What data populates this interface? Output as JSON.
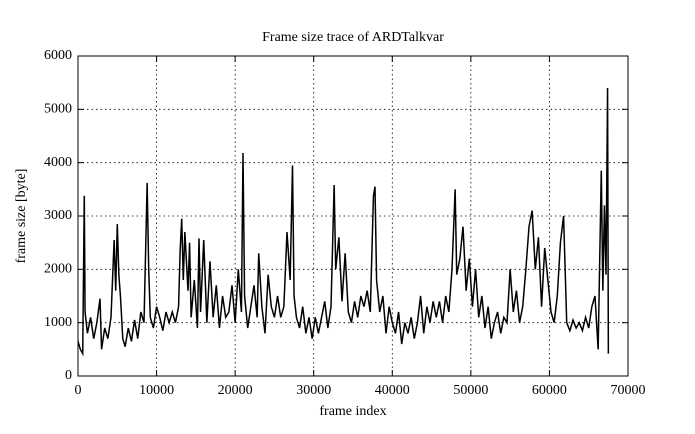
{
  "chart_data": {
    "type": "line",
    "title": "Frame size trace of ARDTalkvar",
    "x_label": "frame index",
    "y_label": "frame size [byte]",
    "x": [
      0,
      300,
      600,
      800,
      900,
      1200,
      1600,
      2000,
      2400,
      2800,
      3000,
      3400,
      3800,
      4200,
      4600,
      4800,
      5000,
      5200,
      5400,
      5700,
      6000,
      6400,
      6800,
      7200,
      7600,
      8000,
      8400,
      8800,
      9000,
      9200,
      9600,
      10000,
      10400,
      10800,
      11200,
      11600,
      12000,
      12400,
      12800,
      13000,
      13200,
      13400,
      13600,
      14000,
      14200,
      14400,
      14800,
      15200,
      15400,
      15600,
      16000,
      16400,
      16800,
      17200,
      17600,
      18000,
      18400,
      18800,
      19200,
      19600,
      20000,
      20400,
      20800,
      21000,
      21200,
      21600,
      22000,
      22400,
      22800,
      23000,
      23400,
      23800,
      24200,
      24600,
      25000,
      25400,
      25800,
      26200,
      26600,
      27000,
      27300,
      27500,
      27800,
      28200,
      28600,
      29000,
      29400,
      29800,
      30200,
      30600,
      31000,
      31400,
      31800,
      32200,
      32600,
      32800,
      33200,
      33600,
      34000,
      34400,
      34800,
      35200,
      35600,
      36000,
      36400,
      36800,
      37200,
      37600,
      37800,
      38000,
      38400,
      38800,
      39200,
      39600,
      40000,
      40400,
      40800,
      41200,
      41600,
      42000,
      42400,
      42800,
      43200,
      43600,
      44000,
      44400,
      44800,
      45200,
      45600,
      46000,
      46400,
      46800,
      47200,
      47600,
      48000,
      48200,
      48600,
      49000,
      49400,
      49800,
      50200,
      50600,
      51000,
      51400,
      51800,
      52200,
      52600,
      53000,
      53400,
      53800,
      54200,
      54600,
      55000,
      55400,
      55800,
      56200,
      56600,
      57000,
      57400,
      57800,
      58200,
      58600,
      59000,
      59400,
      59800,
      60200,
      60600,
      61000,
      61400,
      61800,
      62200,
      62600,
      63000,
      63400,
      63800,
      64200,
      64600,
      65000,
      65400,
      65800,
      66200,
      66600,
      66800,
      67000,
      67200,
      67400,
      67500
    ],
    "series": [
      {
        "color": "#000000",
        "values": [
          650,
          500,
          420,
          3380,
          1200,
          800,
          1100,
          700,
          1000,
          1450,
          500,
          900,
          700,
          1100,
          2550,
          1600,
          2850,
          1900,
          1500,
          700,
          550,
          900,
          650,
          1050,
          700,
          1200,
          1000,
          3620,
          2000,
          1100,
          900,
          1300,
          1100,
          850,
          1200,
          1000,
          1200,
          1000,
          1300,
          2350,
          2950,
          1800,
          2700,
          1600,
          2500,
          1100,
          1800,
          900,
          2580,
          1200,
          2550,
          1000,
          2150,
          1100,
          1700,
          900,
          1500,
          1100,
          1200,
          1700,
          1000,
          2000,
          1200,
          4180,
          1500,
          900,
          1300,
          1700,
          1100,
          2300,
          1300,
          800,
          1900,
          1300,
          1100,
          1500,
          1100,
          1300,
          2700,
          1800,
          3950,
          1500,
          1100,
          900,
          1300,
          800,
          1100,
          700,
          1100,
          800,
          1100,
          1400,
          900,
          1300,
          3580,
          2000,
          2600,
          1400,
          2300,
          1200,
          1000,
          1400,
          1100,
          1500,
          1300,
          1600,
          1200,
          3370,
          3550,
          1800,
          1200,
          1500,
          800,
          1300,
          1000,
          800,
          1200,
          600,
          1000,
          800,
          1100,
          700,
          1000,
          1500,
          800,
          1300,
          1000,
          1400,
          1100,
          1400,
          1000,
          1500,
          1200,
          2000,
          3500,
          1900,
          2200,
          2800,
          1600,
          2200,
          1300,
          2000,
          1100,
          1500,
          900,
          1300,
          700,
          1000,
          1200,
          800,
          1100,
          1000,
          2000,
          1200,
          1600,
          1000,
          1300,
          2000,
          2800,
          3100,
          2000,
          2600,
          1300,
          2400,
          1800,
          1200,
          1000,
          1500,
          2500,
          3000,
          1000,
          850,
          1050,
          900,
          1000,
          850,
          1100,
          900,
          1300,
          1500,
          500,
          3850,
          1600,
          3200,
          1900,
          5400,
          420
        ]
      }
    ],
    "xlim": [
      0,
      70000
    ],
    "ylim": [
      0,
      6000
    ],
    "xticks": [
      0,
      10000,
      20000,
      30000,
      40000,
      50000,
      60000,
      70000
    ],
    "yticks": [
      0,
      1000,
      2000,
      3000,
      4000,
      5000,
      6000
    ],
    "grid": true
  }
}
